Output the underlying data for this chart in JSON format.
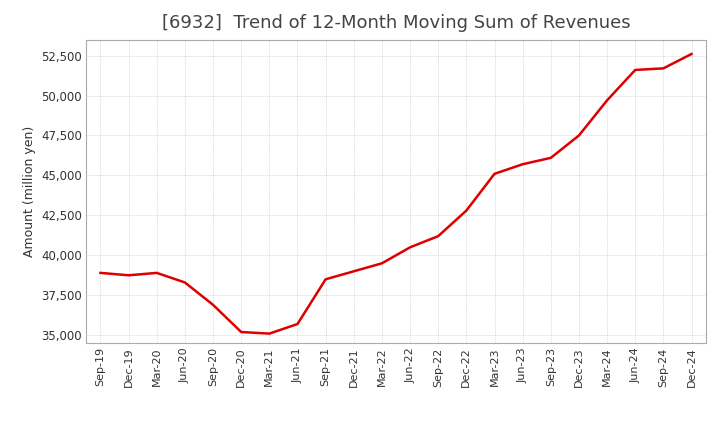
{
  "title": "[6932]  Trend of 12-Month Moving Sum of Revenues",
  "ylabel": "Amount (million yen)",
  "x_labels": [
    "Sep-19",
    "Dec-19",
    "Mar-20",
    "Jun-20",
    "Sep-20",
    "Dec-20",
    "Mar-21",
    "Jun-21",
    "Sep-21",
    "Dec-21",
    "Mar-22",
    "Jun-22",
    "Sep-22",
    "Dec-22",
    "Mar-23",
    "Jun-23",
    "Sep-23",
    "Dec-23",
    "Mar-24",
    "Jun-24",
    "Sep-24",
    "Dec-24"
  ],
  "values": [
    38900,
    38750,
    38900,
    38300,
    36900,
    35200,
    35100,
    35700,
    38500,
    39000,
    39500,
    40500,
    41200,
    42800,
    45100,
    45700,
    46100,
    47500,
    49700,
    51600,
    51700,
    52600
  ],
  "ylim": [
    34500,
    53500
  ],
  "yticks": [
    35000,
    37500,
    40000,
    42500,
    45000,
    47500,
    50000,
    52500
  ],
  "line_color": "#dd0000",
  "bg_color": "#ffffff",
  "grid_color": "#aaaaaa",
  "title_color": "#444444",
  "title_fontsize": 13,
  "axis_border_color": "#aaaaaa"
}
